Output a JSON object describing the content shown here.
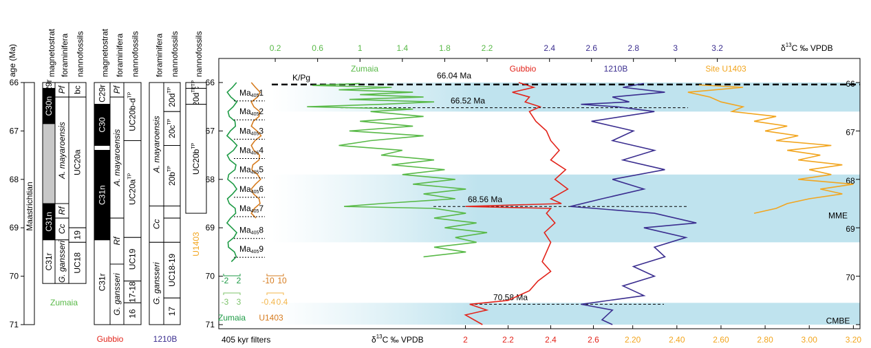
{
  "columns": {
    "age_axis": {
      "label": "age (Ma)",
      "ticks": [
        66,
        67,
        68,
        69,
        70,
        71
      ]
    },
    "stage": {
      "label": "Maastrichtian",
      "top": 66,
      "bottom": 71
    },
    "groups": [
      {
        "name": "Zumaia",
        "color": "#58b947",
        "columns": [
          {
            "header": "magnetostrat",
            "cells": [
              {
                "label": "29r",
                "top": 66,
                "bottom": 66.12
              },
              {
                "label": "C30n",
                "top": 66.12,
                "bottom": 66.85,
                "fill": "#000000"
              },
              {
                "top": 66.85,
                "bottom": 68.5,
                "fill": "#c8c8c8"
              },
              {
                "label": "C31n",
                "top": 68.5,
                "bottom": 69.25,
                "fill": "#000000"
              },
              {
                "label": "C31r",
                "top": 69.25,
                "bottom": 70.15
              }
            ]
          },
          {
            "header": "foraminifera",
            "italic": true,
            "cells": [
              {
                "label": "Pf",
                "top": 66,
                "bottom": 66.3
              },
              {
                "label": "A. mayaroensis",
                "top": 66.3,
                "bottom": 68.5
              },
              {
                "label": "Rf",
                "top": 68.5,
                "bottom": 68.8
              },
              {
                "label": "Cc",
                "top": 68.8,
                "bottom": 69.25
              },
              {
                "label": "G. gansseri",
                "top": 69.25,
                "bottom": 70.15
              }
            ]
          },
          {
            "header": "nannofossils",
            "cells": [
              {
                "label": "bc",
                "top": 66,
                "bottom": 66.3
              },
              {
                "label": "UC20a",
                "top": 66.3,
                "bottom": 69.0
              },
              {
                "label": "19",
                "top": 69.0,
                "bottom": 69.3
              },
              {
                "label": "UC18",
                "top": 69.3,
                "bottom": 70.15
              }
            ]
          }
        ]
      },
      {
        "name": "Gubbio",
        "color": "#e2231a",
        "columns": [
          {
            "header": "magnetostrat",
            "cells": [
              {
                "label": "C29r",
                "top": 66,
                "bottom": 66.45
              },
              {
                "label": "C30",
                "top": 66.45,
                "bottom": 67.3,
                "fill": "#000000"
              },
              {
                "top": 67.3,
                "bottom": 67.4
              },
              {
                "label": "C31n",
                "top": 67.4,
                "bottom": 69.25,
                "fill": "#000000"
              },
              {
                "label": "C31r",
                "top": 69.25,
                "bottom": 71
              }
            ]
          },
          {
            "header": "foraminifera",
            "italic": true,
            "cells": [
              {
                "label": "Pf",
                "top": 66,
                "bottom": 66.3
              },
              {
                "label": "A. mayaroensis",
                "top": 66.3,
                "bottom": 68.8
              },
              {
                "label": "Rf",
                "top": 68.8,
                "bottom": 69.75
              },
              {
                "label": "G. gansseri",
                "top": 69.75,
                "bottom": 71
              }
            ]
          },
          {
            "header": "nannofossils",
            "cells": [
              {
                "label": "UC20b-d",
                "sup": "TP",
                "top": 66,
                "bottom": 67.2
              },
              {
                "label": "UC20a",
                "sup": "TP",
                "top": 67.2,
                "bottom": 69.2
              },
              {
                "label": "UC19",
                "top": 69.2,
                "bottom": 70.1
              },
              {
                "label": "17-18",
                "top": 70.1,
                "bottom": 70.55
              },
              {
                "label": "16",
                "top": 70.55,
                "bottom": 71
              }
            ]
          }
        ]
      },
      {
        "name": "1210B",
        "color": "#3a2d8f",
        "columns": [
          {
            "header": "foraminifera",
            "italic": true,
            "cells": [
              {
                "label": "A. mayaroensis",
                "top": 66,
                "bottom": 68.55
              },
              {
                "label": "Cc",
                "top": 68.55,
                "bottom": 69.3
              },
              {
                "label": "G. gansseri",
                "top": 69.3,
                "bottom": 71
              }
            ]
          },
          {
            "header": "nannofossils",
            "cells": [
              {
                "label": "20d",
                "sup": "TP",
                "top": 66,
                "bottom": 66.6
              },
              {
                "label": "20c",
                "sup": "TP",
                "top": 66.6,
                "bottom": 67.3
              },
              {
                "label": "20b",
                "sup": "TP",
                "top": 67.3,
                "bottom": 68.55
              },
              {
                "top": 68.55,
                "bottom": 68.8
              },
              {
                "top": 68.8,
                "bottom": 69.3
              },
              {
                "label": "UC18-19",
                "top": 69.3,
                "bottom": 70.45
              },
              {
                "label": "17",
                "top": 70.45,
                "bottom": 71
              }
            ]
          }
        ]
      },
      {
        "name": "U1403",
        "color": "#f2a51e",
        "columns": [
          {
            "header": "nannofossils",
            "cells": [
              {
                "label": "c",
                "sup": "TP",
                "top": 66,
                "bottom": 66.12
              },
              {
                "label": "20d",
                "sup": "TP",
                "top": 66.12,
                "bottom": 66.45
              },
              {
                "label": "UC20b",
                "sup": "TP",
                "top": 66.45,
                "bottom": 68.7
              }
            ]
          }
        ]
      }
    ]
  },
  "chart_data": {
    "type": "line",
    "ylim": [
      66,
      71
    ],
    "yticks": [
      66,
      67,
      68,
      69,
      70,
      71
    ],
    "xlabel": {
      "pre": "δ",
      "sup": "13",
      "post": "C ‰ VPDB"
    },
    "x_axes": {
      "zumaia": {
        "position": "top",
        "color": "#58b947",
        "xlim": [
          -0.32,
          5.72
        ],
        "xticks": [
          0.2,
          0.6,
          1,
          1.4,
          1.8,
          2.2
        ]
      },
      "site_1210b": {
        "position": "top",
        "color": "#3a2d8f",
        "xlim": [
          0.83,
          3.88
        ],
        "xticks": [
          2.4,
          2.6,
          2.8,
          3,
          3.2
        ]
      },
      "gubbio": {
        "position": "bottom",
        "color": "#e2231a",
        "xlim": [
          0.85,
          3.85
        ],
        "xticks": [
          2,
          2.2,
          2.4,
          2.6
        ]
      },
      "u1403": {
        "position": "bottom",
        "color": "#f2a51e",
        "xlim": [
          0.33,
          3.23
        ],
        "xticks": [
          {
            "value": 2.2,
            "label": "2.20"
          },
          {
            "value": 2.4,
            "label": "2.40"
          },
          {
            "value": 2.6,
            "label": "2.60"
          },
          {
            "value": 2.8,
            "label": "2.80"
          },
          {
            "value": 3.0,
            "label": "3.00"
          },
          {
            "value": 3.2,
            "label": "3.20"
          }
        ]
      }
    },
    "series": [
      {
        "name": "Zumaia",
        "color": "#58b947",
        "x_axis": "zumaia",
        "age": [
          66.02,
          66.06,
          66.1,
          66.15,
          66.2,
          66.25,
          66.3,
          66.35,
          66.4,
          66.45,
          66.5,
          66.55,
          66.6,
          66.7,
          66.8,
          66.9,
          67.0,
          67.1,
          67.2,
          67.3,
          67.4,
          67.5,
          67.6,
          67.7,
          67.8,
          67.9,
          68.0,
          68.1,
          68.2,
          68.3,
          68.4,
          68.5,
          68.56,
          68.6,
          68.7,
          68.8,
          68.9,
          69.0,
          69.1,
          69.2,
          69.3,
          69.4,
          69.5,
          69.6
        ],
        "values": [
          1.0,
          0.55,
          1.3,
          0.8,
          1.5,
          1.0,
          1.6,
          0.9,
          1.7,
          1.2,
          0.5,
          1.5,
          1.1,
          1.6,
          1.0,
          1.5,
          0.9,
          1.6,
          1.1,
          0.8,
          1.4,
          1.2,
          1.7,
          1.3,
          1.8,
          1.4,
          1.9,
          1.5,
          2.0,
          1.6,
          1.9,
          1.2,
          0.85,
          1.7,
          2.0,
          1.7,
          2.1,
          1.8,
          2.2,
          1.9,
          2.1,
          1.7,
          2.0,
          1.6
        ]
      },
      {
        "name": "Gubbio",
        "color": "#e2231a",
        "x_axis": "gubbio",
        "age": [
          66.0,
          66.1,
          66.2,
          66.3,
          66.4,
          66.5,
          66.6,
          66.8,
          67.0,
          67.2,
          67.4,
          67.6,
          67.8,
          68.0,
          68.2,
          68.4,
          68.5,
          68.56,
          68.6,
          68.7,
          68.9,
          69.1,
          69.3,
          69.5,
          69.7,
          69.9,
          70.1,
          70.3,
          70.5,
          70.58,
          70.7,
          70.8,
          71.0
        ],
        "values": [
          2.25,
          2.32,
          2.22,
          2.3,
          2.28,
          2.35,
          2.3,
          2.33,
          2.38,
          2.4,
          2.44,
          2.4,
          2.47,
          2.42,
          2.48,
          2.4,
          2.45,
          2.0,
          2.4,
          2.38,
          2.42,
          2.37,
          2.4,
          2.38,
          2.36,
          2.4,
          2.34,
          2.3,
          2.2,
          2.02,
          2.1,
          2.0,
          2.08
        ]
      },
      {
        "name": "1210B",
        "color": "#3a2d8f",
        "x_axis": "site_1210b",
        "age": [
          66.02,
          66.1,
          66.2,
          66.3,
          66.4,
          66.45,
          66.5,
          66.6,
          66.8,
          67.0,
          67.2,
          67.4,
          67.6,
          67.8,
          68.0,
          68.2,
          68.4,
          68.56,
          68.7,
          68.9,
          69.0,
          69.2,
          69.4,
          69.6,
          69.8,
          70.0,
          70.2,
          70.4,
          70.58,
          70.7,
          70.9,
          71.0
        ],
        "values": [
          2.85,
          2.75,
          2.95,
          2.7,
          2.78,
          2.55,
          2.72,
          2.9,
          2.6,
          2.8,
          2.7,
          2.9,
          2.75,
          2.95,
          2.7,
          2.85,
          2.65,
          2.5,
          2.9,
          3.1,
          2.85,
          3.05,
          2.9,
          2.95,
          2.8,
          2.9,
          2.75,
          2.85,
          2.55,
          2.7,
          2.65,
          2.7
        ]
      },
      {
        "name": "Site U1403",
        "color": "#f2a51e",
        "x_axis": "u1403",
        "age": [
          66.05,
          66.1,
          66.2,
          66.3,
          66.4,
          66.5,
          66.6,
          66.7,
          66.8,
          66.9,
          67.0,
          67.1,
          67.2,
          67.3,
          67.4,
          67.5,
          67.6,
          67.7,
          67.8,
          67.9,
          68.0,
          68.1,
          68.2,
          68.3,
          68.4,
          68.5,
          68.6,
          68.7
        ],
        "values": [
          2.5,
          2.7,
          2.45,
          2.55,
          2.6,
          2.7,
          2.65,
          2.85,
          2.75,
          2.9,
          2.8,
          2.95,
          2.85,
          3.1,
          2.9,
          3.05,
          2.95,
          3.15,
          3.0,
          3.1,
          2.95,
          3.2,
          3.05,
          3.15,
          3.0,
          2.9,
          2.85,
          2.75
        ]
      }
    ],
    "filters": {
      "label": "405 kyr filters",
      "series": [
        {
          "name": "Zumaia",
          "color": "#1c9a44",
          "xlim": [
            -4,
            4
          ],
          "scales": [
            {
              "ticks": [
                -2,
                2
              ],
              "color": "#1c9a44"
            },
            {
              "ticks": [
                -3,
                3
              ],
              "color": "#7cc36a"
            }
          ],
          "age": [
            66.0,
            66.1,
            66.2,
            66.3,
            66.4,
            66.5,
            66.6,
            66.7,
            66.8,
            66.9,
            67.0,
            67.1,
            67.2,
            67.3,
            67.4,
            67.5,
            67.6,
            67.7,
            67.8,
            67.9,
            68.0,
            68.1,
            68.2,
            68.3,
            68.4,
            68.5,
            68.6,
            68.7,
            68.8,
            68.9,
            69.0,
            69.1,
            69.2,
            69.3,
            69.4,
            69.5,
            69.6,
            69.7
          ],
          "values": [
            1.8,
            0.2,
            -1.8,
            -0.4,
            1.9,
            0.5,
            -1.5,
            -1.0,
            1.2,
            1.4,
            -0.6,
            -1.9,
            0.2,
            2.0,
            0.6,
            -1.8,
            -0.8,
            1.6,
            1.2,
            -1.2,
            -1.6,
            0.6,
            1.9,
            0.3,
            -1.7,
            -1.0,
            1.3,
            1.5,
            -0.5,
            -1.9,
            0.0,
            1.9,
            0.8,
            -1.5,
            -1.3,
            1.0,
            1.7,
            -0.2
          ]
        },
        {
          "name": "U1403",
          "color": "#d67b1e",
          "xlim": [
            -20,
            20
          ],
          "scales": [
            {
              "ticks": [
                -10,
                10
              ],
              "color": "#d67b1e"
            },
            {
              "ticks": [
                -0.4,
                0.4
              ],
              "color": "#f3b54a"
            }
          ],
          "age": [
            66.0,
            66.1,
            66.2,
            66.3,
            66.4,
            66.5,
            66.6,
            66.7,
            66.8,
            66.9,
            67.0,
            67.1,
            67.2,
            67.3,
            67.4,
            67.5,
            67.6,
            67.7,
            67.8,
            67.9,
            68.0,
            68.1,
            68.2,
            68.3,
            68.4,
            68.5,
            68.6,
            68.7,
            68.8
          ],
          "values": [
            -9,
            -1,
            8,
            3,
            -9,
            -4,
            7,
            6,
            -5,
            -9,
            2,
            10,
            -2,
            -9,
            -4,
            7,
            6,
            -6,
            -8,
            3,
            9,
            -1,
            -9,
            -5,
            6,
            8,
            -3,
            -9,
            0
          ]
        }
      ]
    },
    "cycles": {
      "prefix": "Ma",
      "sub": "405",
      "labels": [
        "1",
        "2",
        "3",
        "4",
        "5",
        "6",
        "7",
        "8",
        "9"
      ],
      "ages": [
        66.21,
        66.6,
        67.0,
        67.4,
        67.8,
        68.2,
        68.6,
        69.05,
        69.44
      ]
    },
    "boundary": {
      "label": "K/Pg",
      "age": 66.04,
      "age_label": "66.04 Ma"
    },
    "events": [
      {
        "age": 66.52,
        "label": "66.52 Ma"
      },
      {
        "age": 68.56,
        "label": "68.56 Ma"
      },
      {
        "age": 70.58,
        "label": "70.58 Ma"
      }
    ],
    "bands": [
      {
        "from": 66.0,
        "to": 66.6
      },
      {
        "from": 67.9,
        "to": 69.3,
        "label": "MME"
      },
      {
        "from": 70.55,
        "to": 71.0,
        "label": "CMBE"
      }
    ]
  }
}
